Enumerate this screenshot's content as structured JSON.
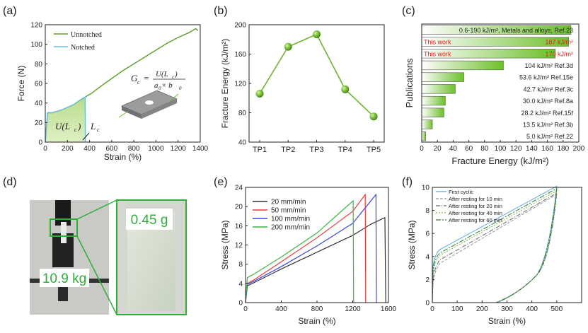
{
  "panel_labels": {
    "a": "(a)",
    "b": "(b)",
    "c": "(c)",
    "d": "(d)",
    "e": "(e)",
    "f": "(f)"
  },
  "chart_data": [
    {
      "id": "a",
      "type": "line",
      "xlabel": "Strain (%)",
      "ylabel": "Force (N)",
      "xlim": [
        0,
        1400
      ],
      "ylim": [
        0,
        120
      ],
      "xticks": [
        0,
        200,
        400,
        600,
        800,
        1000,
        1200,
        1400
      ],
      "yticks": [
        0,
        20,
        40,
        60,
        80,
        100,
        120
      ],
      "legend_position": "top-left",
      "series": [
        {
          "name": "Unnotched",
          "color": "#5a9e2a",
          "x": [
            0,
            20,
            60,
            150,
            250,
            330,
            420,
            500,
            600,
            700,
            800,
            900,
            1000,
            1100,
            1200,
            1300,
            1360,
            1380
          ],
          "y": [
            0,
            30,
            30,
            33,
            38,
            44,
            50,
            57,
            65,
            73,
            80,
            87,
            94,
            101,
            107,
            112,
            116,
            114
          ]
        },
        {
          "name": "Notched",
          "color": "#6ac0e0",
          "x": [
            0,
            20,
            60,
            150,
            250,
            340,
            360,
            362
          ],
          "y": [
            0,
            30,
            30,
            33,
            38,
            45,
            46,
            0
          ]
        }
      ],
      "annotations": {
        "area_label": "U(L",
        "area_label_sub": "c",
        "area_label_end": ")",
        "lc_label": "L",
        "lc_sub": "c",
        "formula_lhs": "G",
        "formula_lhs_sub": "c",
        "formula_num": "U(L",
        "formula_num_sub": "c",
        "formula_num_end": ")",
        "formula_den": "a",
        "formula_den_sub0": "0",
        "formula_den_mid": " × b",
        "formula_den_sub1": "0",
        "formula_eq": "="
      }
    },
    {
      "id": "b",
      "type": "line",
      "xlabel": "",
      "ylabel": "Fracture Energy (kJ/m²)",
      "categories": [
        "TP1",
        "TP2",
        "TP3",
        "TP4",
        "TP5"
      ],
      "values": [
        106,
        170,
        187,
        112,
        75
      ],
      "ylim": [
        40,
        200
      ],
      "yticks": [
        40,
        80,
        120,
        160,
        200
      ],
      "color": "#6cb52f"
    },
    {
      "id": "c",
      "type": "bar",
      "orientation": "horizontal",
      "xlabel": "Fracture Energy (kJ/m²)",
      "ylabel": "Publications",
      "xlim": [
        0,
        200
      ],
      "xticks": [
        0,
        20,
        40,
        60,
        80,
        100,
        120,
        140,
        160,
        180,
        200
      ],
      "bars": [
        {
          "label": "0.6-190 kJ/m², Metals and alloys, Ref.23",
          "value": 190,
          "highlight": false
        },
        {
          "label": "187 kJ/m²",
          "prefix": "This work",
          "value": 187,
          "highlight": true
        },
        {
          "label": "170 kJ/m²",
          "prefix": "This work",
          "value": 170,
          "highlight": true
        },
        {
          "label": "104 kJ/m²  Ref.3d",
          "value": 104,
          "highlight": false
        },
        {
          "label": "53.6 kJ/m²  Ref.15e",
          "value": 53.6,
          "highlight": false
        },
        {
          "label": "42.7 kJ/m²  Ref.3c",
          "value": 42.7,
          "highlight": false
        },
        {
          "label": "30.0 kJ/m²  Ref.8a",
          "value": 30.0,
          "highlight": false
        },
        {
          "label": "28.2 kJ/m²  Ref.15f",
          "value": 28.2,
          "highlight": false
        },
        {
          "label": "13.5 kJ/m²  Ref.3b",
          "value": 13.5,
          "highlight": false
        },
        {
          "label": "5.0 kJ/m²  Ref.22",
          "value": 5.0,
          "highlight": false
        }
      ],
      "highlight_color": "#e02020"
    },
    {
      "id": "e",
      "type": "line",
      "xlabel": "Strain (%)",
      "ylabel": "Stress (MPa)",
      "xlim": [
        0,
        1600
      ],
      "ylim": [
        0,
        24
      ],
      "xticks": [
        0,
        400,
        800,
        1200,
        1600
      ],
      "yticks": [
        0,
        4,
        8,
        12,
        16,
        20,
        24
      ],
      "legend_position": "top-left",
      "series": [
        {
          "name": "20 mm/min",
          "color": "#333333",
          "x": [
            0,
            20,
            100,
            400,
            800,
            1200,
            1400,
            1560,
            1570
          ],
          "y": [
            0,
            3.5,
            4.2,
            7.0,
            10.5,
            14.0,
            16.3,
            17.7,
            0
          ]
        },
        {
          "name": "50 mm/min",
          "color": "#e83a3a",
          "x": [
            0,
            20,
            100,
            400,
            800,
            1200,
            1340,
            1345
          ],
          "y": [
            0,
            4.0,
            4.8,
            8.5,
            13.5,
            19.0,
            22.5,
            0
          ]
        },
        {
          "name": "100 mm/min",
          "color": "#3a4ad8",
          "x": [
            0,
            20,
            100,
            400,
            800,
            1200,
            1460,
            1465
          ],
          "y": [
            0,
            3.8,
            4.5,
            7.5,
            11.8,
            16.5,
            22.5,
            0
          ]
        },
        {
          "name": "200 mm/min",
          "color": "#3ab83a",
          "x": [
            0,
            20,
            100,
            400,
            800,
            1150,
            1205,
            1210
          ],
          "y": [
            0,
            5.2,
            6.0,
            9.5,
            14.5,
            20.3,
            21.2,
            0
          ]
        }
      ]
    },
    {
      "id": "f",
      "type": "line",
      "xlabel": "Strain (%)",
      "ylabel": "Stress (MPa)",
      "xlim": [
        0,
        600
      ],
      "ylim": [
        0,
        10
      ],
      "xticks": [
        0,
        100,
        200,
        300,
        400,
        500
      ],
      "yticks": [
        0,
        2,
        4,
        6,
        8,
        10
      ],
      "legend_position": "top-left",
      "series": [
        {
          "name": "First cyclic",
          "color": "#5aaee0",
          "dash": "",
          "top": [
            4.2,
            4.6,
            10.1
          ],
          "zero": 260
        },
        {
          "name": "After resting for 10 min",
          "color": "#999999",
          "dash": "4,2",
          "top": [
            2.8,
            3.4,
            9.4
          ],
          "zero": 255
        },
        {
          "name": "After resting for 20 min",
          "color": "#666666",
          "dash": "6,2,1,2",
          "top": [
            3.1,
            3.7,
            9.5
          ],
          "zero": 255
        },
        {
          "name": "After resting for 40 min",
          "color": "#7ab84a",
          "dash": "2,2",
          "top": [
            3.6,
            4.1,
            9.7
          ],
          "zero": 257
        },
        {
          "name": "After resting for 60 min",
          "color": "#2e7a2e",
          "dash": "7,2,2,2",
          "top": [
            3.9,
            4.3,
            9.9
          ],
          "zero": 258
        }
      ]
    }
  ],
  "photo_d": {
    "weight_label": "10.9 kg",
    "sample_label": "0.45 g"
  }
}
